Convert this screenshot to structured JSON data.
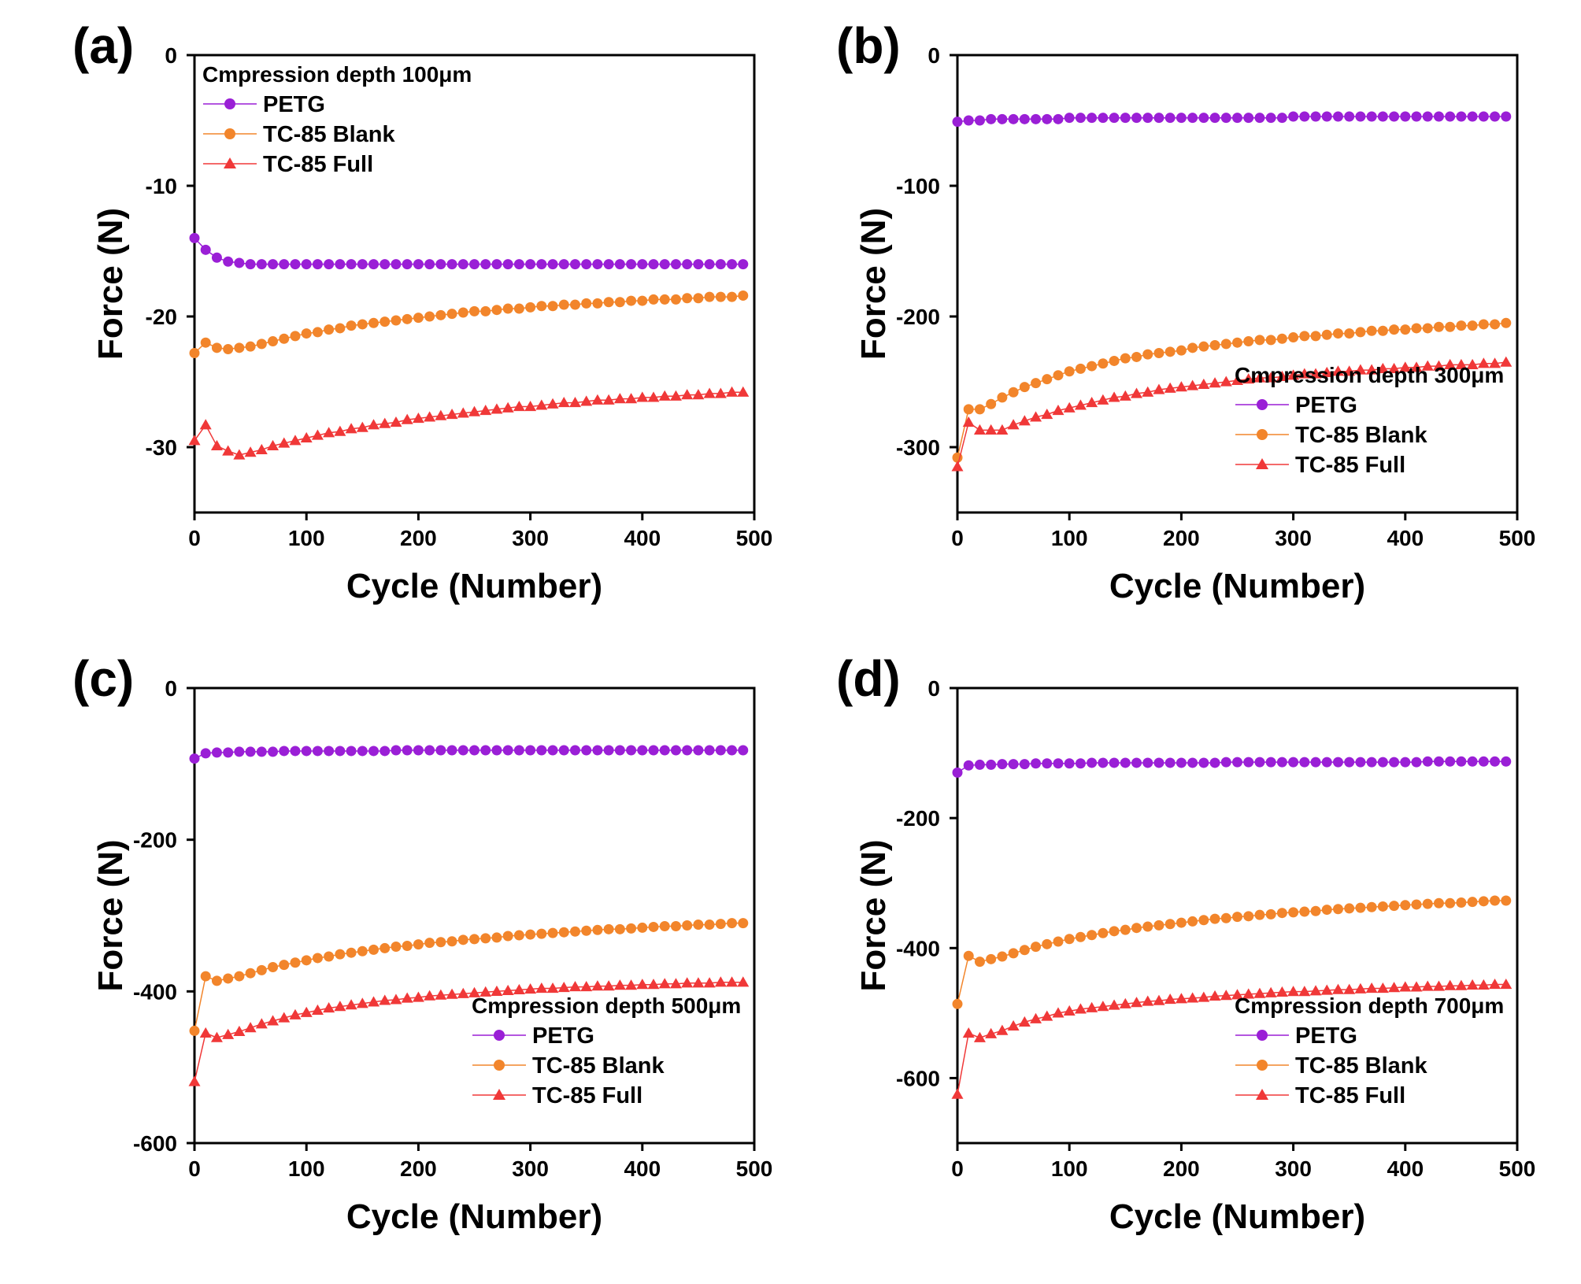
{
  "figure": {
    "series_names": [
      "PETG",
      "TC-85 Blank",
      "TC-85 Full"
    ],
    "series_colors": {
      "PETG": "#9A1FD6",
      "TC-85 Blank": "#F2852B",
      "TC-85 Full": "#F03838"
    },
    "markers": {
      "PETG": "circle",
      "TC-85 Blank": "circle",
      "TC-85 Full": "triangle"
    }
  },
  "chart_data": [
    {
      "type": "line",
      "panel_label": "(a)",
      "legend_title": "Cmpression depth 100μm",
      "legend_position": "top-left",
      "xlabel": "Cycle (Number)",
      "ylabel": "Force (N)",
      "xlim": [
        0,
        500
      ],
      "ylim": [
        -35,
        0
      ],
      "xticks": [
        0,
        100,
        200,
        300,
        400,
        500
      ],
      "yticks": [
        0,
        -10,
        -20,
        -30
      ],
      "x": [
        0,
        10,
        20,
        30,
        40,
        50,
        60,
        70,
        80,
        90,
        100,
        110,
        120,
        130,
        140,
        150,
        160,
        170,
        180,
        190,
        200,
        210,
        220,
        230,
        240,
        250,
        260,
        270,
        280,
        290,
        300,
        310,
        320,
        330,
        340,
        350,
        360,
        370,
        380,
        390,
        400,
        410,
        420,
        430,
        440,
        450,
        460,
        470,
        480,
        490
      ],
      "series": [
        {
          "name": "PETG",
          "values": [
            -14.0,
            -14.9,
            -15.5,
            -15.8,
            -15.9,
            -16.0,
            -16.0,
            -16.0,
            -16.0,
            -16.0,
            -16.0,
            -16.0,
            -16.0,
            -16.0,
            -16.0,
            -16.0,
            -16.0,
            -16.0,
            -16.0,
            -16.0,
            -16.0,
            -16.0,
            -16.0,
            -16.0,
            -16.0,
            -16.0,
            -16.0,
            -16.0,
            -16.0,
            -16.0,
            -16.0,
            -16.0,
            -16.0,
            -16.0,
            -16.0,
            -16.0,
            -16.0,
            -16.0,
            -16.0,
            -16.0,
            -16.0,
            -16.0,
            -16.0,
            -16.0,
            -16.0,
            -16.0,
            -16.0,
            -16.0,
            -16.0,
            -16.0
          ]
        },
        {
          "name": "TC-85 Blank",
          "values": [
            -22.8,
            -22.0,
            -22.4,
            -22.5,
            -22.4,
            -22.3,
            -22.1,
            -21.9,
            -21.7,
            -21.5,
            -21.3,
            -21.2,
            -21.0,
            -20.9,
            -20.7,
            -20.6,
            -20.5,
            -20.4,
            -20.3,
            -20.2,
            -20.1,
            -20.0,
            -19.9,
            -19.8,
            -19.7,
            -19.6,
            -19.6,
            -19.5,
            -19.4,
            -19.4,
            -19.3,
            -19.2,
            -19.2,
            -19.1,
            -19.1,
            -19.0,
            -19.0,
            -18.9,
            -18.9,
            -18.8,
            -18.8,
            -18.7,
            -18.7,
            -18.7,
            -18.6,
            -18.6,
            -18.5,
            -18.5,
            -18.5,
            -18.4
          ]
        },
        {
          "name": "TC-85 Full",
          "values": [
            -29.5,
            -28.3,
            -29.9,
            -30.3,
            -30.6,
            -30.4,
            -30.2,
            -29.9,
            -29.7,
            -29.5,
            -29.3,
            -29.1,
            -28.9,
            -28.8,
            -28.6,
            -28.5,
            -28.3,
            -28.2,
            -28.1,
            -27.9,
            -27.8,
            -27.7,
            -27.6,
            -27.5,
            -27.4,
            -27.3,
            -27.2,
            -27.1,
            -27.0,
            -26.9,
            -26.9,
            -26.8,
            -26.7,
            -26.6,
            -26.6,
            -26.5,
            -26.4,
            -26.4,
            -26.3,
            -26.3,
            -26.2,
            -26.2,
            -26.1,
            -26.1,
            -26.0,
            -26.0,
            -25.9,
            -25.9,
            -25.8,
            -25.8
          ]
        }
      ]
    },
    {
      "type": "line",
      "panel_label": "(b)",
      "legend_title": "Cmpression depth 300μm",
      "legend_position": "bottom-right",
      "xlabel": "Cycle (Number)",
      "ylabel": "Force (N)",
      "xlim": [
        0,
        500
      ],
      "ylim": [
        -350,
        0
      ],
      "xticks": [
        0,
        100,
        200,
        300,
        400,
        500
      ],
      "yticks": [
        0,
        -100,
        -200,
        -300
      ],
      "x": [
        0,
        10,
        20,
        30,
        40,
        50,
        60,
        70,
        80,
        90,
        100,
        110,
        120,
        130,
        140,
        150,
        160,
        170,
        180,
        190,
        200,
        210,
        220,
        230,
        240,
        250,
        260,
        270,
        280,
        290,
        300,
        310,
        320,
        330,
        340,
        350,
        360,
        370,
        380,
        390,
        400,
        410,
        420,
        430,
        440,
        450,
        460,
        470,
        480,
        490
      ],
      "series": [
        {
          "name": "PETG",
          "values": [
            -51,
            -50,
            -50,
            -49,
            -49,
            -49,
            -49,
            -49,
            -49,
            -49,
            -48,
            -48,
            -48,
            -48,
            -48,
            -48,
            -48,
            -48,
            -48,
            -48,
            -48,
            -48,
            -48,
            -48,
            -48,
            -48,
            -48,
            -48,
            -48,
            -48,
            -47,
            -47,
            -47,
            -47,
            -47,
            -47,
            -47,
            -47,
            -47,
            -47,
            -47,
            -47,
            -47,
            -47,
            -47,
            -47,
            -47,
            -47,
            -47,
            -47
          ]
        },
        {
          "name": "TC-85 Blank",
          "values": [
            -308,
            -271,
            -271,
            -267,
            -262,
            -258,
            -254,
            -251,
            -248,
            -245,
            -242,
            -240,
            -238,
            -236,
            -234,
            -232,
            -231,
            -229,
            -228,
            -227,
            -226,
            -224,
            -223,
            -222,
            -221,
            -220,
            -219,
            -218,
            -218,
            -217,
            -216,
            -215,
            -215,
            -214,
            -213,
            -213,
            -212,
            -211,
            -211,
            -210,
            -210,
            -209,
            -209,
            -208,
            -208,
            -207,
            -207,
            -206,
            -206,
            -205
          ]
        },
        {
          "name": "TC-85 Full",
          "values": [
            -315,
            -281,
            -287,
            -287,
            -287,
            -283,
            -280,
            -277,
            -275,
            -272,
            -270,
            -268,
            -266,
            -264,
            -262,
            -261,
            -259,
            -258,
            -256,
            -255,
            -254,
            -253,
            -252,
            -251,
            -250,
            -249,
            -248,
            -247,
            -247,
            -246,
            -245,
            -244,
            -244,
            -243,
            -242,
            -242,
            -241,
            -241,
            -240,
            -240,
            -239,
            -239,
            -238,
            -238,
            -237,
            -237,
            -237,
            -236,
            -236,
            -235
          ]
        }
      ]
    },
    {
      "type": "line",
      "panel_label": "(c)",
      "legend_title": "Cmpression depth 500μm",
      "legend_position": "bottom-right",
      "xlabel": "Cycle (Number)",
      "ylabel": "Force (N)",
      "xlim": [
        0,
        500
      ],
      "ylim": [
        -600,
        0
      ],
      "xticks": [
        0,
        100,
        200,
        300,
        400,
        500
      ],
      "yticks": [
        0,
        -200,
        -400,
        -600
      ],
      "x": [
        0,
        10,
        20,
        30,
        40,
        50,
        60,
        70,
        80,
        90,
        100,
        110,
        120,
        130,
        140,
        150,
        160,
        170,
        180,
        190,
        200,
        210,
        220,
        230,
        240,
        250,
        260,
        270,
        280,
        290,
        300,
        310,
        320,
        330,
        340,
        350,
        360,
        370,
        380,
        390,
        400,
        410,
        420,
        430,
        440,
        450,
        460,
        470,
        480,
        490
      ],
      "series": [
        {
          "name": "PETG",
          "values": [
            -93,
            -86,
            -85,
            -85,
            -84,
            -84,
            -84,
            -84,
            -83,
            -83,
            -83,
            -83,
            -83,
            -83,
            -83,
            -83,
            -83,
            -83,
            -82,
            -82,
            -82,
            -82,
            -82,
            -82,
            -82,
            -82,
            -82,
            -82,
            -82,
            -82,
            -82,
            -82,
            -82,
            -82,
            -82,
            -82,
            -82,
            -82,
            -82,
            -82,
            -82,
            -82,
            -82,
            -82,
            -82,
            -82,
            -82,
            -82,
            -82,
            -82
          ]
        },
        {
          "name": "TC-85 Blank",
          "values": [
            -452,
            -380,
            -386,
            -383,
            -380,
            -376,
            -372,
            -368,
            -365,
            -362,
            -359,
            -356,
            -354,
            -351,
            -349,
            -347,
            -345,
            -343,
            -341,
            -340,
            -338,
            -336,
            -335,
            -334,
            -332,
            -331,
            -330,
            -329,
            -327,
            -326,
            -325,
            -324,
            -323,
            -322,
            -321,
            -320,
            -319,
            -318,
            -318,
            -317,
            -316,
            -315,
            -314,
            -314,
            -313,
            -312,
            -312,
            -311,
            -310,
            -310
          ]
        },
        {
          "name": "TC-85 Full",
          "values": [
            -519,
            -455,
            -461,
            -457,
            -453,
            -448,
            -443,
            -439,
            -435,
            -431,
            -428,
            -425,
            -422,
            -420,
            -418,
            -416,
            -414,
            -412,
            -411,
            -409,
            -408,
            -406,
            -405,
            -404,
            -403,
            -402,
            -401,
            -400,
            -399,
            -398,
            -397,
            -396,
            -396,
            -395,
            -394,
            -394,
            -393,
            -393,
            -392,
            -392,
            -391,
            -391,
            -390,
            -390,
            -389,
            -389,
            -389,
            -388,
            -388,
            -388
          ]
        }
      ]
    },
    {
      "type": "line",
      "panel_label": "(d)",
      "legend_title": "Cmpression depth 700μm",
      "legend_position": "bottom-right",
      "xlabel": "Cycle (Number)",
      "ylabel": "Force (N)",
      "xlim": [
        0,
        500
      ],
      "ylim": [
        -700,
        0
      ],
      "xticks": [
        0,
        100,
        200,
        300,
        400,
        500
      ],
      "yticks": [
        0,
        -200,
        -400,
        -600
      ],
      "x": [
        0,
        10,
        20,
        30,
        40,
        50,
        60,
        70,
        80,
        90,
        100,
        110,
        120,
        130,
        140,
        150,
        160,
        170,
        180,
        190,
        200,
        210,
        220,
        230,
        240,
        250,
        260,
        270,
        280,
        290,
        300,
        310,
        320,
        330,
        340,
        350,
        360,
        370,
        380,
        390,
        400,
        410,
        420,
        430,
        440,
        450,
        460,
        470,
        480,
        490
      ],
      "series": [
        {
          "name": "PETG",
          "values": [
            -130,
            -119,
            -118,
            -118,
            -117,
            -117,
            -117,
            -116,
            -116,
            -116,
            -116,
            -116,
            -115,
            -115,
            -115,
            -115,
            -115,
            -115,
            -115,
            -115,
            -115,
            -115,
            -115,
            -115,
            -114,
            -114,
            -114,
            -114,
            -114,
            -114,
            -114,
            -114,
            -114,
            -114,
            -114,
            -114,
            -114,
            -114,
            -114,
            -114,
            -114,
            -114,
            -113,
            -113,
            -113,
            -113,
            -113,
            -113,
            -113,
            -113
          ]
        },
        {
          "name": "TC-85 Blank",
          "values": [
            -486,
            -412,
            -421,
            -417,
            -413,
            -408,
            -403,
            -398,
            -394,
            -390,
            -386,
            -383,
            -380,
            -377,
            -374,
            -372,
            -369,
            -367,
            -365,
            -363,
            -361,
            -359,
            -357,
            -355,
            -354,
            -352,
            -351,
            -349,
            -348,
            -346,
            -345,
            -344,
            -343,
            -341,
            -340,
            -339,
            -338,
            -337,
            -336,
            -335,
            -334,
            -333,
            -332,
            -331,
            -331,
            -330,
            -329,
            -328,
            -327,
            -327
          ]
        },
        {
          "name": "TC-85 Full",
          "values": [
            -625,
            -531,
            -538,
            -532,
            -527,
            -520,
            -514,
            -509,
            -505,
            -500,
            -497,
            -494,
            -492,
            -490,
            -488,
            -486,
            -484,
            -482,
            -481,
            -479,
            -478,
            -477,
            -476,
            -474,
            -473,
            -472,
            -471,
            -470,
            -469,
            -468,
            -467,
            -467,
            -466,
            -465,
            -464,
            -464,
            -463,
            -462,
            -462,
            -461,
            -460,
            -460,
            -459,
            -459,
            -458,
            -458,
            -457,
            -457,
            -456,
            -456
          ]
        }
      ]
    }
  ]
}
